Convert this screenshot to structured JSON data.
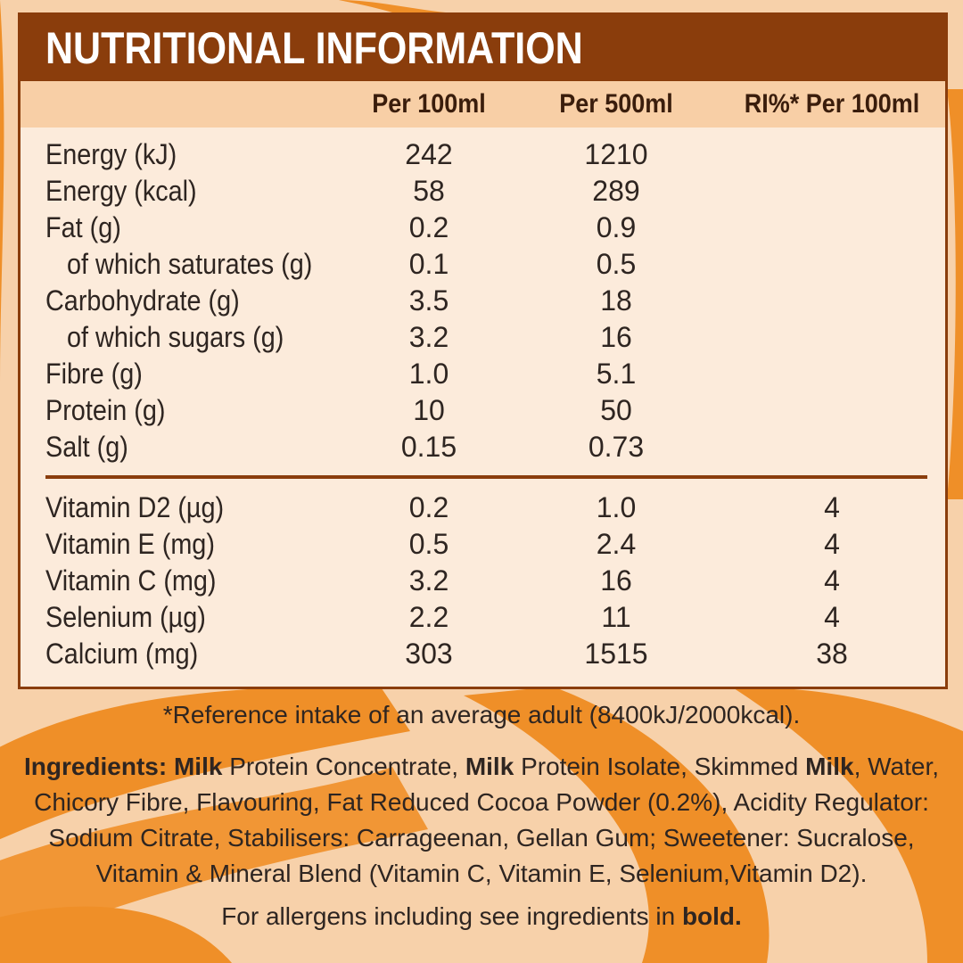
{
  "title": "NUTRITIONAL INFORMATION",
  "headers": [
    "",
    "Per 100ml",
    "Per 500ml",
    "RI%* Per 100ml"
  ],
  "nutrients": [
    {
      "label": "Energy (kJ)",
      "per100": "242",
      "per500": "1210",
      "ri": "",
      "indent": false
    },
    {
      "label": "Energy (kcal)",
      "per100": "58",
      "per500": "289",
      "ri": "",
      "indent": false
    },
    {
      "label": "Fat (g)",
      "per100": "0.2",
      "per500": "0.9",
      "ri": "",
      "indent": false
    },
    {
      "label": "of which saturates (g)",
      "per100": "0.1",
      "per500": "0.5",
      "ri": "",
      "indent": true
    },
    {
      "label": "Carbohydrate (g)",
      "per100": "3.5",
      "per500": "18",
      "ri": "",
      "indent": false
    },
    {
      "label": "of which sugars (g)",
      "per100": "3.2",
      "per500": "16",
      "ri": "",
      "indent": true
    },
    {
      "label": "Fibre (g)",
      "per100": "1.0",
      "per500": "5.1",
      "ri": "",
      "indent": false
    },
    {
      "label": "Protein (g)",
      "per100": "10",
      "per500": "50",
      "ri": "",
      "indent": false
    },
    {
      "label": "Salt (g)",
      "per100": "0.15",
      "per500": "0.73",
      "ri": "",
      "indent": false
    }
  ],
  "vitamins": [
    {
      "label": "Vitamin D2 (µg)",
      "per100": "0.2",
      "per500": "1.0",
      "ri": "4"
    },
    {
      "label": "Vitamin E (mg)",
      "per100": "0.5",
      "per500": "2.4",
      "ri": "4"
    },
    {
      "label": "Vitamin C (mg)",
      "per100": "3.2",
      "per500": "16",
      "ri": "4"
    },
    {
      "label": "Selenium (µg)",
      "per100": "2.2",
      "per500": "11",
      "ri": "4"
    },
    {
      "label": "Calcium (mg)",
      "per100": "303",
      "per500": "1515",
      "ri": "38"
    }
  ],
  "footnote": "*Reference intake of an average adult (8400kJ/2000kcal).",
  "ingredients": [
    {
      "text": "Ingredients:",
      "bold": true
    },
    {
      "text": " ",
      "bold": false
    },
    {
      "text": "Milk",
      "bold": true
    },
    {
      "text": " Protein Concentrate, ",
      "bold": false
    },
    {
      "text": "Milk",
      "bold": true
    },
    {
      "text": " Protein Isolate, Skimmed ",
      "bold": false
    },
    {
      "text": "Milk",
      "bold": true
    },
    {
      "text": ", Water, Chicory Fibre, Flavouring, Fat Reduced Cocoa Powder (0.2%), Acidity Regulator: Sodium Citrate, Stabilisers: Carrageenan, Gellan Gum; Sweetener: Sucralose, Vitamin & Mineral Blend (Vitamin C, Vitamin E, Selenium,Vitamin D2).",
      "bold": false
    }
  ],
  "allergens": [
    {
      "text": "For allergens including see ingredients in ",
      "bold": false
    },
    {
      "text": "bold.",
      "bold": true
    }
  ],
  "colors": {
    "accent_brown": "#8a3d0c",
    "header_peach": "#f8cfa6",
    "panel_cream": "#fcebdb",
    "swirl_orange": "#ef8f28",
    "background_peach": "#f7d1aa"
  }
}
